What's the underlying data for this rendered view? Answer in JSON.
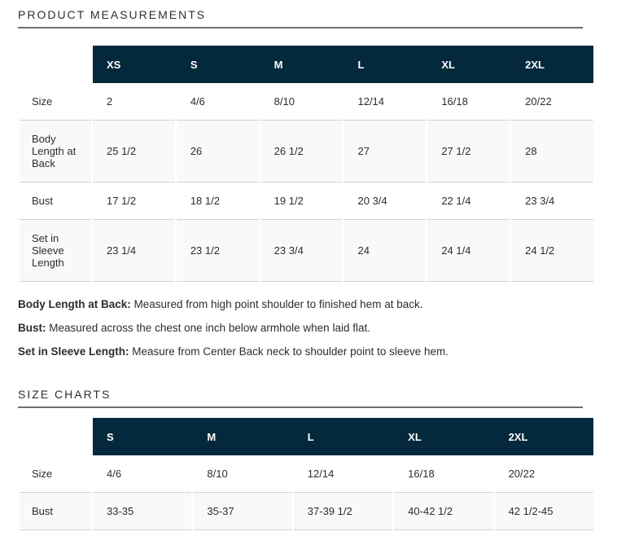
{
  "colors": {
    "header_bg": "#05293c",
    "header_text": "#ffffff",
    "row_shade": "#f9f9f9",
    "row_border": "#d2d2d2",
    "heading_rule": "#6f6f6f",
    "body_text": "#2d2d2d"
  },
  "product_measurements": {
    "title": "PRODUCT MEASUREMENTS",
    "columns": [
      "XS",
      "S",
      "M",
      "L",
      "XL",
      "2XL"
    ],
    "rows": [
      {
        "label": "Size",
        "shaded": false,
        "values": [
          "2",
          "4/6",
          "8/10",
          "12/14",
          "16/18",
          "20/22"
        ]
      },
      {
        "label": "Body Length at Back",
        "shaded": true,
        "values": [
          "25 1/2",
          "26",
          "26 1/2",
          "27",
          "27 1/2",
          "28"
        ]
      },
      {
        "label": "Bust",
        "shaded": false,
        "values": [
          "17 1/2",
          "18 1/2",
          "19 1/2",
          "20 3/4",
          "22 1/4",
          "23 3/4"
        ]
      },
      {
        "label": "Set in Sleeve Length",
        "shaded": true,
        "values": [
          "23 1/4",
          "23 1/2",
          "23 3/4",
          "24",
          "24 1/4",
          "24 1/2"
        ]
      }
    ],
    "notes": [
      {
        "term": "Body Length at Back:",
        "text": " Measured from high point shoulder to finished hem at back."
      },
      {
        "term": "Bust:",
        "text": " Measured across the chest one inch below armhole when laid flat."
      },
      {
        "term": "Set in Sleeve Length:",
        "text": " Measure from Center Back neck to shoulder point to sleeve hem."
      }
    ]
  },
  "size_charts": {
    "title": "SIZE CHARTS",
    "columns": [
      "S",
      "M",
      "L",
      "XL",
      "2XL"
    ],
    "rows": [
      {
        "label": "Size",
        "shaded": false,
        "values": [
          "4/6",
          "8/10",
          "12/14",
          "16/18",
          "20/22"
        ]
      },
      {
        "label": "Bust",
        "shaded": true,
        "values": [
          "33-35",
          "35-37",
          "37-39 1/2",
          "40-42 1/2",
          "42 1/2-45"
        ]
      }
    ]
  }
}
